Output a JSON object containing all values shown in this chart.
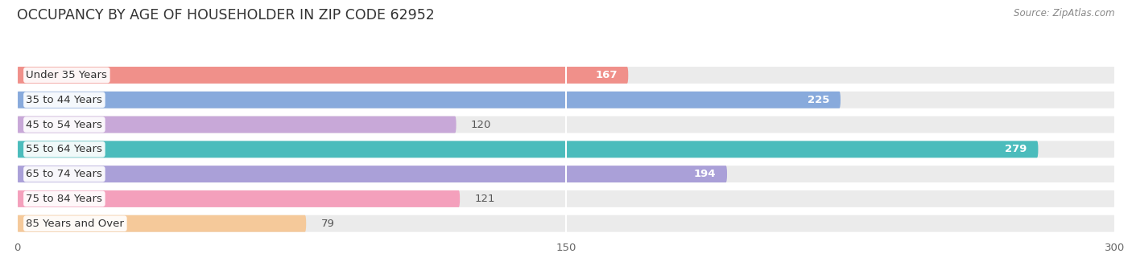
{
  "title": "OCCUPANCY BY AGE OF HOUSEHOLDER IN ZIP CODE 62952",
  "source": "Source: ZipAtlas.com",
  "categories": [
    "Under 35 Years",
    "35 to 44 Years",
    "45 to 54 Years",
    "55 to 64 Years",
    "65 to 74 Years",
    "75 to 84 Years",
    "85 Years and Over"
  ],
  "values": [
    167,
    225,
    120,
    279,
    194,
    121,
    79
  ],
  "bar_colors": [
    "#F0908A",
    "#88AADC",
    "#C8A8D8",
    "#4BBCBC",
    "#AAA0D8",
    "#F4A0BC",
    "#F5C99A"
  ],
  "xlim_max": 300,
  "xticks": [
    0,
    150,
    300
  ],
  "background_color": "#ffffff",
  "bar_bg_color": "#ebebeb",
  "title_fontsize": 12.5,
  "source_fontsize": 8.5,
  "label_fontsize": 9.5,
  "value_fontsize": 9.5,
  "bar_height": 0.68,
  "fig_width": 14.06,
  "fig_height": 3.41
}
